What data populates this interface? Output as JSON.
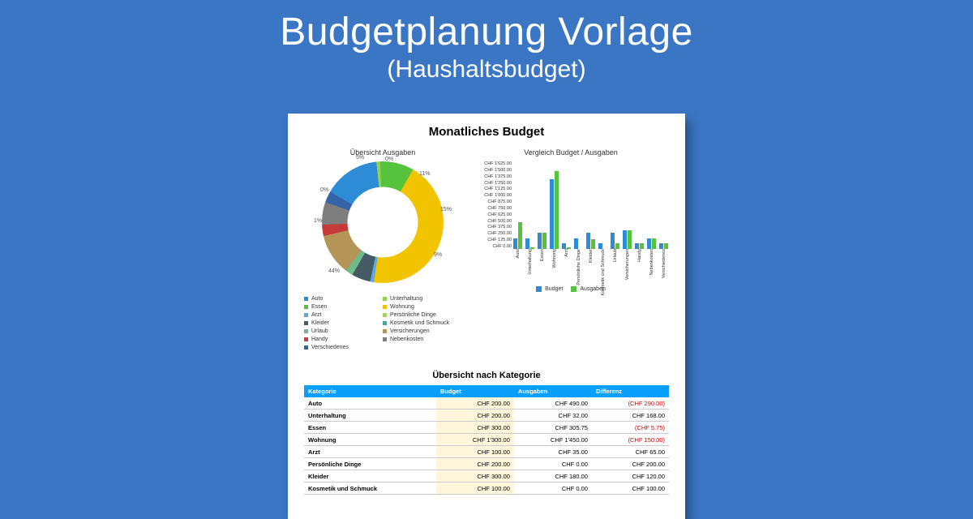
{
  "header": {
    "title": "Budgetplanung Vorlage",
    "subtitle": "(Haushaltsbudget)"
  },
  "doc": {
    "title": "Monatliches Budget",
    "donut": {
      "title": "Übersicht Ausgaben",
      "inner_radius": 0.58,
      "center": "#ffffff",
      "slices": [
        {
          "label": "Auto",
          "pct": 15,
          "color": "#2e8bd6"
        },
        {
          "label": "Unterhaltung",
          "pct": 1,
          "color": "#8fd44a"
        },
        {
          "label": "Essen",
          "pct": 9,
          "color": "#56c33c"
        },
        {
          "label": "Wohnung",
          "pct": 44,
          "color": "#f2c400"
        },
        {
          "label": "Arzt",
          "pct": 1,
          "color": "#5aa9e6"
        },
        {
          "label": "Persönliche Dinge",
          "pct": 0,
          "color": "#a0d468"
        },
        {
          "label": "Kleider",
          "pct": 5,
          "color": "#455a64"
        },
        {
          "label": "Kosmetik und Schmuck",
          "pct": 0,
          "color": "#4aa3a0"
        },
        {
          "label": "Urlaub",
          "pct": 2,
          "color": "#6dbb8a"
        },
        {
          "label": "Versicherungen",
          "pct": 11,
          "color": "#b59557"
        },
        {
          "label": "Handy",
          "pct": 3,
          "color": "#c63a3a"
        },
        {
          "label": "Nebenkosten",
          "pct": 6,
          "color": "#7e7e7e"
        },
        {
          "label": "Verschiedenes",
          "pct": 3,
          "color": "#3463a8"
        }
      ],
      "callouts": [
        "5%",
        "0%",
        "11%",
        "15%",
        "9%",
        "44%",
        "1%",
        "0%"
      ]
    },
    "legend_cols": [
      [
        "Auto",
        "Essen",
        "Arzt",
        "Kleider",
        "Urlaub",
        "Handy",
        "Verschiedenes"
      ],
      [
        "Unterhaltung",
        "Wohnung",
        "Persönliche Dinge",
        "Kosmetik und Schmuck",
        "Versicherungen",
        "Nebenkosten"
      ]
    ],
    "legend_colors": {
      "Auto": "#2e8bd6",
      "Unterhaltung": "#8fd44a",
      "Essen": "#56c33c",
      "Wohnung": "#f2c400",
      "Arzt": "#5aa9e6",
      "Persönliche Dinge": "#a0d468",
      "Kleider": "#455a64",
      "Kosmetik und Schmuck": "#4aa3a0",
      "Urlaub": "#6dbb8a",
      "Versicherungen": "#b59557",
      "Handy": "#c63a3a",
      "Nebenkosten": "#7e7e7e",
      "Verschiedenes": "#3463a8"
    },
    "bars": {
      "title": "Vergleich Budget / Ausgaben",
      "ymax": 1625,
      "ytick_step": 125,
      "ytick_prefix": "CHF ",
      "series": [
        {
          "name": "Budget",
          "color": "#2e8bd6"
        },
        {
          "name": "Ausgaben",
          "color": "#56c33c"
        }
      ],
      "categories": [
        {
          "name": "Auto",
          "budget": 200,
          "ausgaben": 490
        },
        {
          "name": "Unterhaltung",
          "budget": 200,
          "ausgaben": 32
        },
        {
          "name": "Essen",
          "budget": 300,
          "ausgaben": 305
        },
        {
          "name": "Wohnung",
          "budget": 1300,
          "ausgaben": 1450
        },
        {
          "name": "Arzt",
          "budget": 100,
          "ausgaben": 35
        },
        {
          "name": "Persönliche Dinge",
          "budget": 200,
          "ausgaben": 0
        },
        {
          "name": "Kleider",
          "budget": 300,
          "ausgaben": 180
        },
        {
          "name": "Kosmetik und Schmuck",
          "budget": 100,
          "ausgaben": 0
        },
        {
          "name": "Urlaub",
          "budget": 300,
          "ausgaben": 100
        },
        {
          "name": "Versicherungen",
          "budget": 350,
          "ausgaben": 350
        },
        {
          "name": "Handy",
          "budget": 100,
          "ausgaben": 100
        },
        {
          "name": "Nebenkosten",
          "budget": 200,
          "ausgaben": 200
        },
        {
          "name": "Verschiedenes",
          "budget": 100,
          "ausgaben": 100
        }
      ]
    },
    "table": {
      "title": "Übersicht nach Kategorie",
      "columns": [
        "Kategorie",
        "Budget",
        "Ausgaben",
        "Differenz"
      ],
      "rows": [
        [
          "Auto",
          "CHF 200.00",
          "CHF 490.00",
          "(CHF 290.00)",
          true
        ],
        [
          "Unterhaltung",
          "CHF 200.00",
          "CHF 32.00",
          "CHF 168.00",
          false
        ],
        [
          "Essen",
          "CHF 300.00",
          "CHF 305.75",
          "(CHF 5.75)",
          true
        ],
        [
          "Wohnung",
          "CHF 1'300.00",
          "CHF 1'450.00",
          "(CHF 150.00)",
          true
        ],
        [
          "Arzt",
          "CHF 100.00",
          "CHF 35.00",
          "CHF 65.00",
          false
        ],
        [
          "Persönliche Dinge",
          "CHF 200.00",
          "CHF 0.00",
          "CHF 200.00",
          false
        ],
        [
          "Kleider",
          "CHF 300.00",
          "CHF 180.00",
          "CHF 120.00",
          false
        ],
        [
          "Kosmetik und Schmuck",
          "CHF 100.00",
          "CHF 0.00",
          "CHF 100.00",
          false
        ]
      ]
    }
  }
}
